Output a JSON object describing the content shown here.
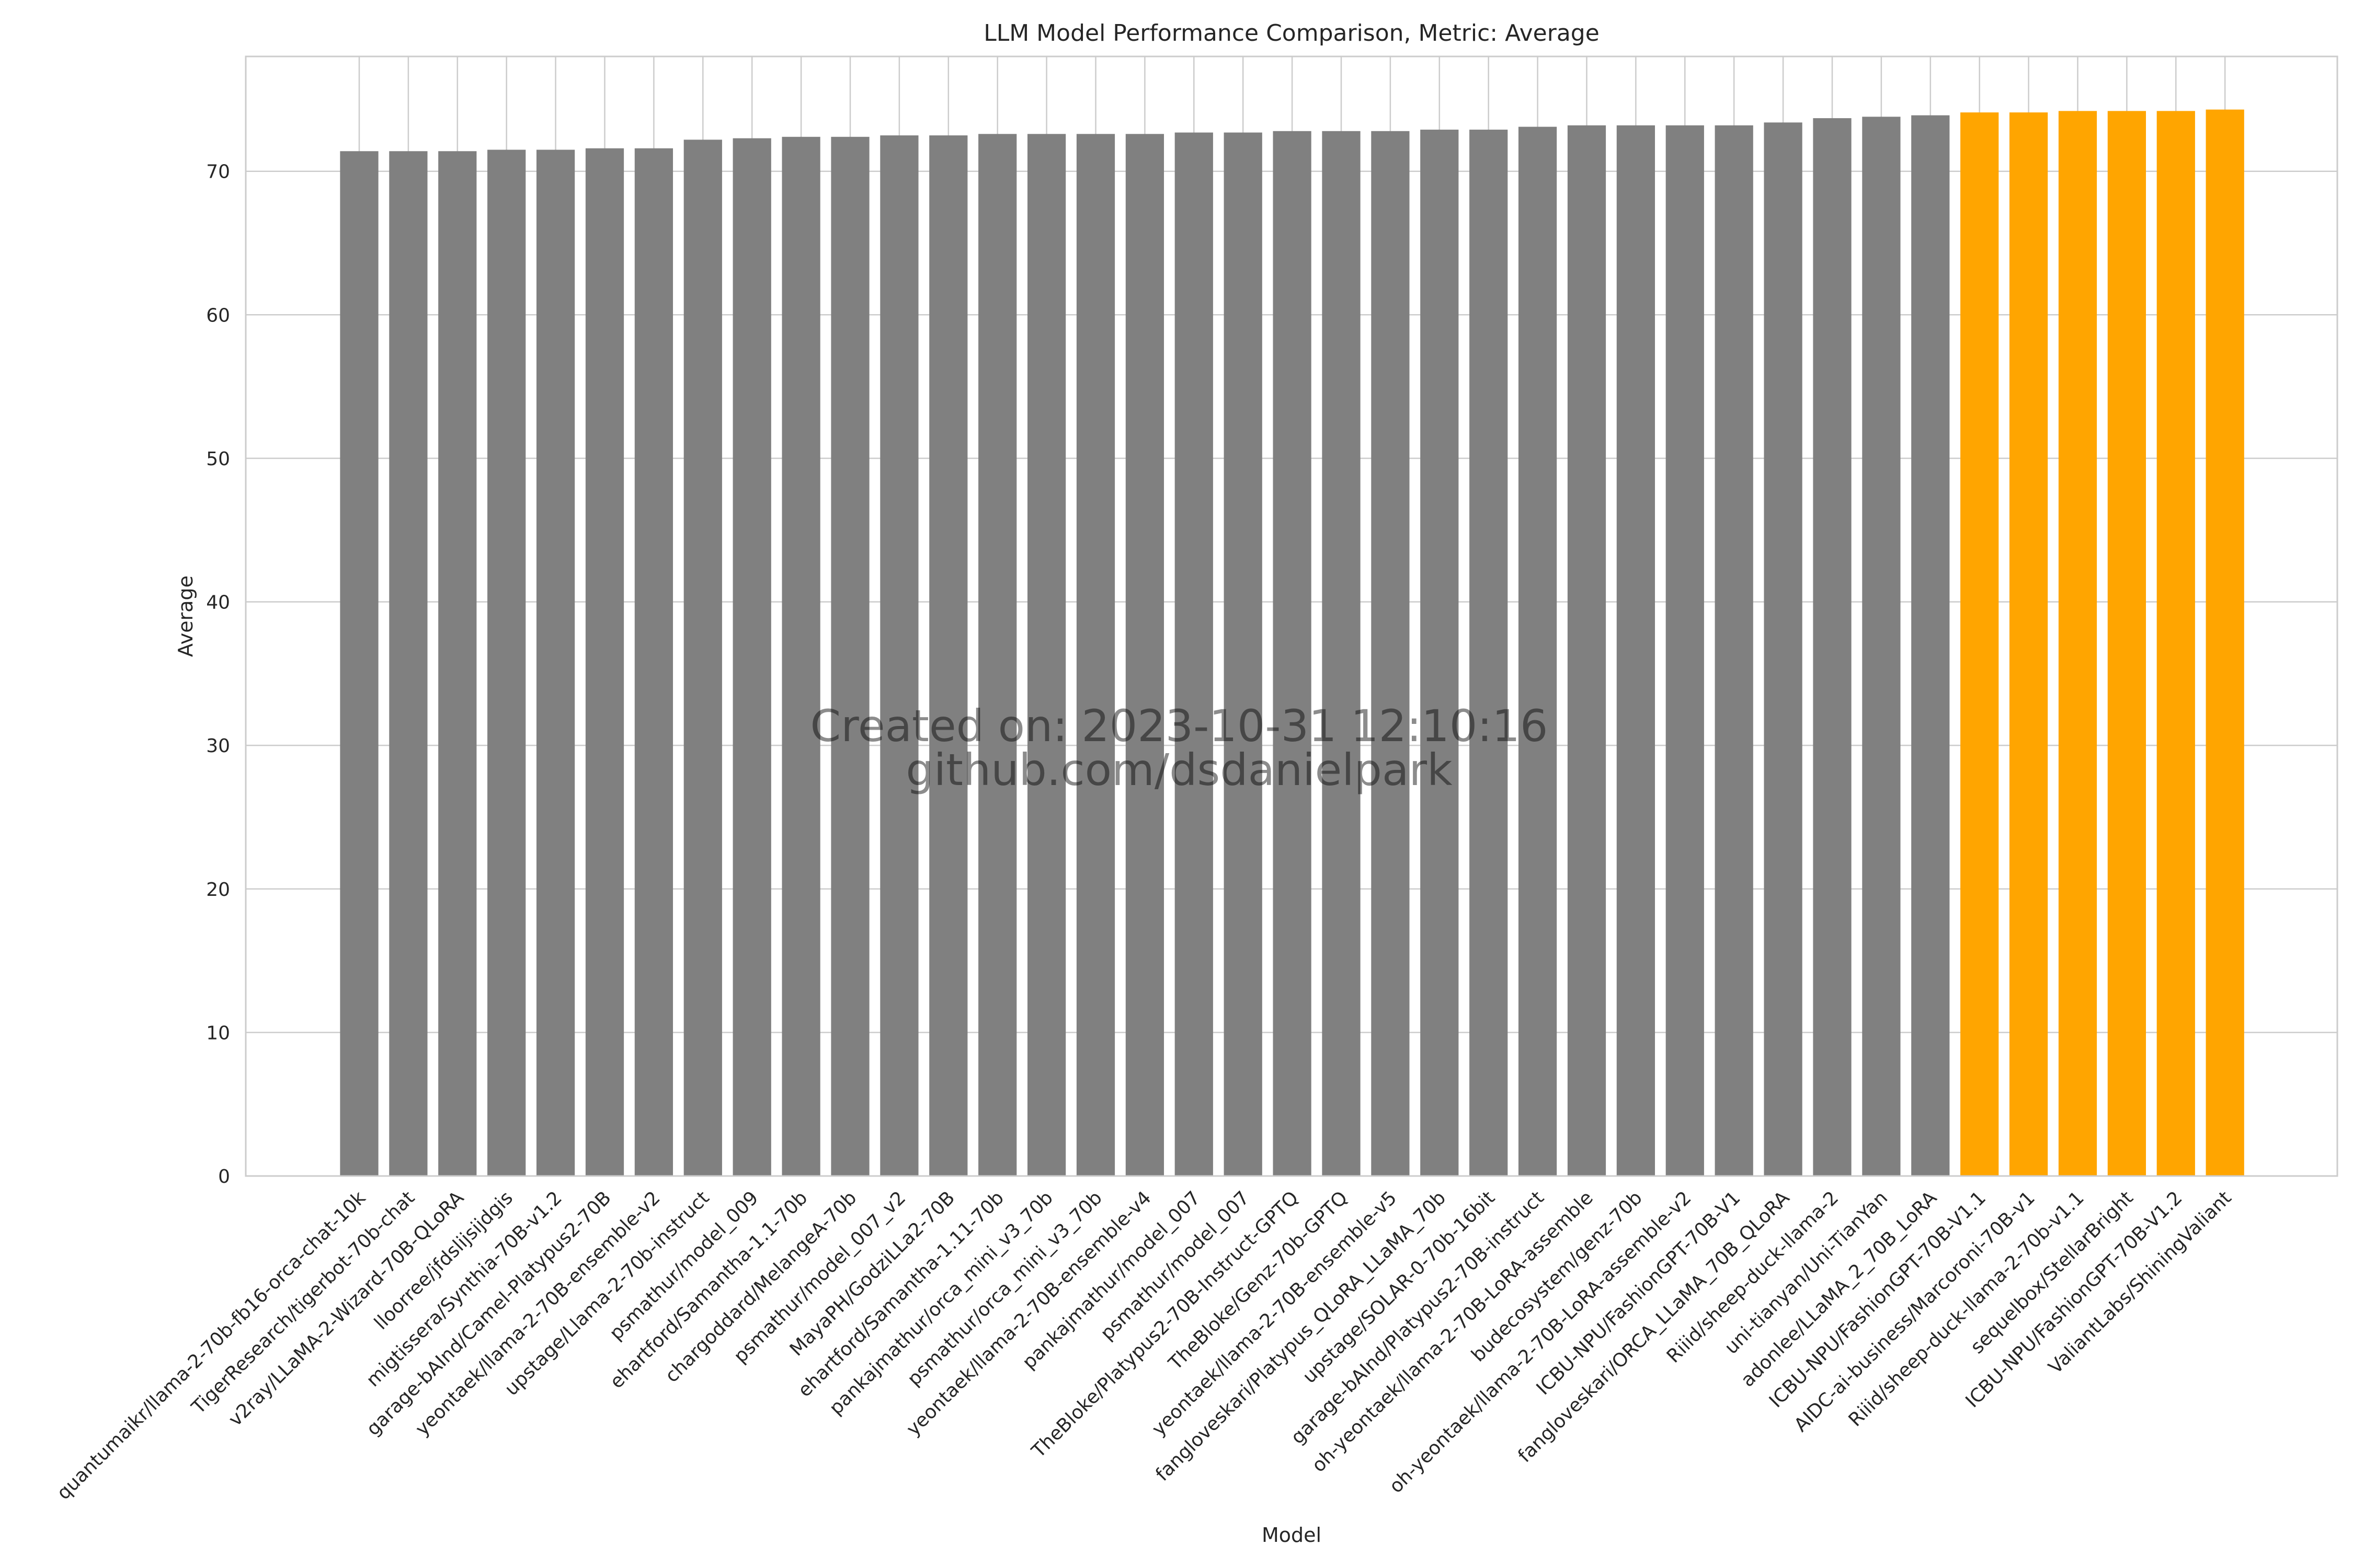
{
  "chart_data": {
    "type": "bar",
    "title": "LLM Model Performance Comparison, Metric: Average",
    "xlabel": "Model",
    "ylabel": "Average",
    "ylim": [
      0,
      78
    ],
    "yticks": [
      0,
      10,
      20,
      30,
      40,
      50,
      60,
      70
    ],
    "grid": true,
    "categories": [
      "quantumaikr/llama-2-70b-fb16-orca-chat-10k",
      "TigerResearch/tigerbot-70b-chat",
      "v2ray/LLaMA-2-Wizard-70B-QLoRA",
      "lloorree/jfdslijsijdgis",
      "migtissera/Synthia-70B-v1.2",
      "garage-bAInd/Camel-Platypus2-70B",
      "yeontaek/llama-2-70B-ensemble-v2",
      "upstage/Llama-2-70b-instruct",
      "psmathur/model_009",
      "ehartford/Samantha-1.1-70b",
      "chargoddard/MelangeA-70b",
      "psmathur/model_007_v2",
      "MayaPH/GodziLLa2-70B",
      "ehartford/Samantha-1.11-70b",
      "pankajmathur/orca_mini_v3_70b",
      "psmathur/orca_mini_v3_70b",
      "yeontaek/llama-2-70B-ensemble-v4",
      "pankajmathur/model_007",
      "psmathur/model_007",
      "TheBloke/Platypus2-70B-Instruct-GPTQ",
      "TheBloke/Genz-70b-GPTQ",
      "yeontaek/llama-2-70B-ensemble-v5",
      "fangloveskari/Platypus_QLoRA_LLaMA_70b",
      "upstage/SOLAR-0-70b-16bit",
      "garage-bAInd/Platypus2-70B-instruct",
      "oh-yeontaek/llama-2-70B-LoRA-assemble",
      "budecosystem/genz-70b",
      "oh-yeontaek/llama-2-70B-LoRA-assemble-v2",
      "ICBU-NPU/FashionGPT-70B-V1",
      "fangloveskari/ORCA_LLaMA_70B_QLoRA",
      "Riiid/sheep-duck-llama-2",
      "uni-tianyan/Uni-TianYan",
      "adonlee/LLaMA_2_70B_LoRA",
      "ICBU-NPU/FashionGPT-70B-V1.1",
      "AIDC-ai-business/Marcoroni-70B-v1",
      "Riiid/sheep-duck-llama-2-70b-v1.1",
      "sequelbox/StellarBright",
      "ICBU-NPU/FashionGPT-70B-V1.2",
      "ValiantLabs/ShiningValiant"
    ],
    "values": [
      71.4,
      71.4,
      71.4,
      71.5,
      71.5,
      71.6,
      71.6,
      72.2,
      72.3,
      72.4,
      72.4,
      72.5,
      72.5,
      72.6,
      72.6,
      72.6,
      72.6,
      72.7,
      72.7,
      72.8,
      72.8,
      72.8,
      72.9,
      72.9,
      73.1,
      73.2,
      73.2,
      73.2,
      73.2,
      73.4,
      73.7,
      73.8,
      73.9,
      74.1,
      74.1,
      74.2,
      74.2,
      74.2,
      74.3
    ],
    "colors": {
      "default": "#808080",
      "highlight": "#FFA500",
      "grid": "#cccccc",
      "frame": "#cccccc"
    },
    "highlighted_count": 6,
    "watermark": {
      "line1": "Created on: 2023-10-31 12:10:16",
      "line2": "github.com/dsdanielpark"
    }
  }
}
